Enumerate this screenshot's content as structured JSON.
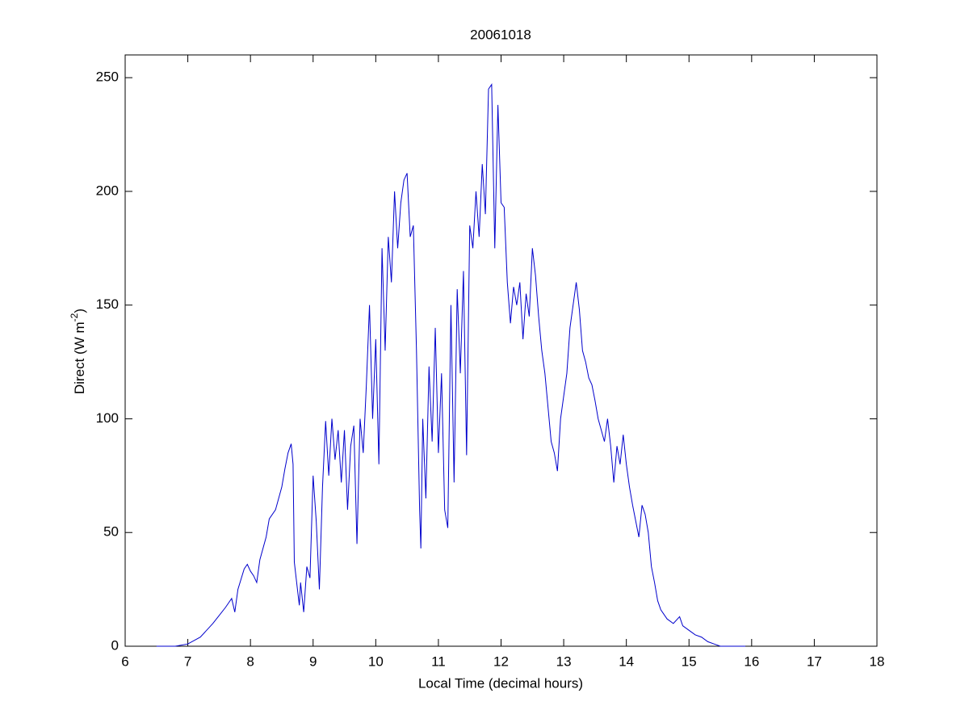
{
  "chart_data": {
    "type": "line",
    "title": "20061018",
    "xlabel": "Local Time (decimal hours)",
    "ylabel": [
      "Direct (W m",
      "-2",
      ")"
    ],
    "xlim": [
      6,
      18
    ],
    "xticks": [
      6,
      7,
      8,
      9,
      10,
      11,
      12,
      13,
      14,
      15,
      16,
      17,
      18
    ],
    "ylim": [
      0,
      260
    ],
    "yticks": [
      0,
      50,
      100,
      150,
      200,
      250
    ],
    "grid": false,
    "series": [
      {
        "color": "#0000cc",
        "x": [
          6.5,
          6.8,
          7.0,
          7.2,
          7.4,
          7.6,
          7.7,
          7.75,
          7.8,
          7.9,
          7.95,
          8.0,
          8.05,
          8.1,
          8.15,
          8.25,
          8.3,
          8.4,
          8.5,
          8.55,
          8.6,
          8.65,
          8.68,
          8.7,
          8.75,
          8.78,
          8.8,
          8.85,
          8.9,
          8.95,
          9.0,
          9.05,
          9.1,
          9.15,
          9.2,
          9.25,
          9.3,
          9.35,
          9.4,
          9.45,
          9.5,
          9.55,
          9.6,
          9.65,
          9.7,
          9.75,
          9.8,
          9.85,
          9.9,
          9.95,
          10.0,
          10.05,
          10.1,
          10.15,
          10.2,
          10.25,
          10.3,
          10.35,
          10.4,
          10.45,
          10.5,
          10.55,
          10.6,
          10.65,
          10.7,
          10.72,
          10.75,
          10.8,
          10.85,
          10.9,
          10.95,
          11.0,
          11.05,
          11.1,
          11.15,
          11.2,
          11.25,
          11.3,
          11.35,
          11.4,
          11.45,
          11.5,
          11.55,
          11.6,
          11.65,
          11.7,
          11.75,
          11.8,
          11.85,
          11.9,
          11.95,
          12.0,
          12.05,
          12.1,
          12.15,
          12.2,
          12.25,
          12.3,
          12.35,
          12.4,
          12.45,
          12.5,
          12.55,
          12.6,
          12.65,
          12.7,
          12.75,
          12.8,
          12.85,
          12.9,
          12.95,
          13.0,
          13.05,
          13.1,
          13.15,
          13.2,
          13.25,
          13.3,
          13.35,
          13.4,
          13.45,
          13.5,
          13.55,
          13.6,
          13.65,
          13.7,
          13.75,
          13.8,
          13.85,
          13.9,
          13.95,
          14.0,
          14.05,
          14.1,
          14.15,
          14.2,
          14.25,
          14.3,
          14.35,
          14.4,
          14.45,
          14.5,
          14.55,
          14.6,
          14.65,
          14.75,
          14.85,
          14.9,
          15.0,
          15.1,
          15.2,
          15.3,
          15.4,
          15.5,
          15.9
        ],
        "values": [
          0,
          0,
          1,
          4,
          10,
          17,
          21,
          15,
          25,
          34,
          36,
          33,
          31,
          28,
          38,
          48,
          56,
          60,
          70,
          78,
          85,
          89,
          80,
          37,
          25,
          18,
          28,
          15,
          35,
          30,
          75,
          55,
          25,
          70,
          99,
          75,
          100,
          82,
          95,
          72,
          95,
          60,
          88,
          97,
          45,
          100,
          85,
          115,
          150,
          100,
          135,
          80,
          175,
          130,
          180,
          160,
          200,
          175,
          195,
          205,
          208,
          180,
          185,
          130,
          60,
          43,
          100,
          65,
          123,
          90,
          140,
          85,
          120,
          60,
          52,
          150,
          72,
          157,
          120,
          165,
          84,
          185,
          175,
          200,
          180,
          212,
          190,
          245,
          247,
          175,
          238,
          195,
          193,
          160,
          142,
          158,
          150,
          160,
          135,
          155,
          145,
          175,
          163,
          145,
          130,
          120,
          105,
          90,
          85,
          77,
          100,
          110,
          120,
          140,
          150,
          160,
          148,
          130,
          125,
          118,
          115,
          108,
          100,
          95,
          90,
          100,
          88,
          72,
          88,
          80,
          93,
          80,
          70,
          62,
          55,
          48,
          62,
          58,
          50,
          35,
          28,
          20,
          16,
          14,
          12,
          10,
          13,
          9,
          7,
          5,
          4,
          2,
          1,
          0,
          0
        ]
      }
    ]
  }
}
